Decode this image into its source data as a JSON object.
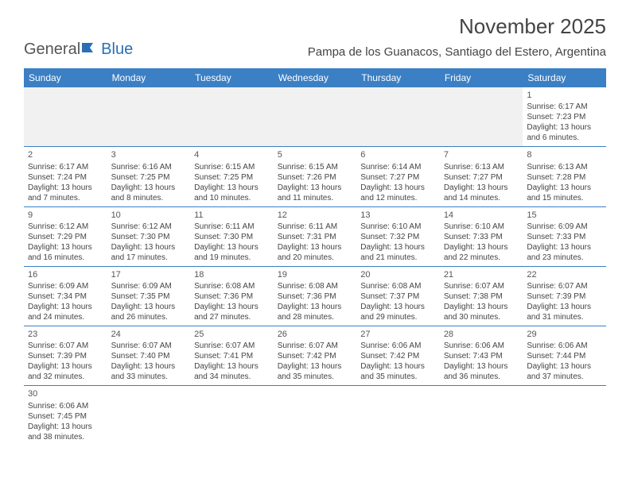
{
  "logo": {
    "part1": "General",
    "part2": "Blue"
  },
  "title": "November 2025",
  "location": "Pampa de los Guanacos, Santiago del Estero, Argentina",
  "colors": {
    "header_bg": "#3b7fc4",
    "header_text": "#ffffff",
    "cell_border": "#3b7fc4",
    "empty_bg": "#f1f1f1",
    "text": "#444444",
    "logo_gray": "#555555",
    "logo_blue": "#2a6fb5"
  },
  "weekdays": [
    "Sunday",
    "Monday",
    "Tuesday",
    "Wednesday",
    "Thursday",
    "Friday",
    "Saturday"
  ],
  "weeks": [
    [
      null,
      null,
      null,
      null,
      null,
      null,
      {
        "n": "1",
        "sr": "Sunrise: 6:17 AM",
        "ss": "Sunset: 7:23 PM",
        "dl1": "Daylight: 13 hours",
        "dl2": "and 6 minutes."
      }
    ],
    [
      {
        "n": "2",
        "sr": "Sunrise: 6:17 AM",
        "ss": "Sunset: 7:24 PM",
        "dl1": "Daylight: 13 hours",
        "dl2": "and 7 minutes."
      },
      {
        "n": "3",
        "sr": "Sunrise: 6:16 AM",
        "ss": "Sunset: 7:25 PM",
        "dl1": "Daylight: 13 hours",
        "dl2": "and 8 minutes."
      },
      {
        "n": "4",
        "sr": "Sunrise: 6:15 AM",
        "ss": "Sunset: 7:25 PM",
        "dl1": "Daylight: 13 hours",
        "dl2": "and 10 minutes."
      },
      {
        "n": "5",
        "sr": "Sunrise: 6:15 AM",
        "ss": "Sunset: 7:26 PM",
        "dl1": "Daylight: 13 hours",
        "dl2": "and 11 minutes."
      },
      {
        "n": "6",
        "sr": "Sunrise: 6:14 AM",
        "ss": "Sunset: 7:27 PM",
        "dl1": "Daylight: 13 hours",
        "dl2": "and 12 minutes."
      },
      {
        "n": "7",
        "sr": "Sunrise: 6:13 AM",
        "ss": "Sunset: 7:27 PM",
        "dl1": "Daylight: 13 hours",
        "dl2": "and 14 minutes."
      },
      {
        "n": "8",
        "sr": "Sunrise: 6:13 AM",
        "ss": "Sunset: 7:28 PM",
        "dl1": "Daylight: 13 hours",
        "dl2": "and 15 minutes."
      }
    ],
    [
      {
        "n": "9",
        "sr": "Sunrise: 6:12 AM",
        "ss": "Sunset: 7:29 PM",
        "dl1": "Daylight: 13 hours",
        "dl2": "and 16 minutes."
      },
      {
        "n": "10",
        "sr": "Sunrise: 6:12 AM",
        "ss": "Sunset: 7:30 PM",
        "dl1": "Daylight: 13 hours",
        "dl2": "and 17 minutes."
      },
      {
        "n": "11",
        "sr": "Sunrise: 6:11 AM",
        "ss": "Sunset: 7:30 PM",
        "dl1": "Daylight: 13 hours",
        "dl2": "and 19 minutes."
      },
      {
        "n": "12",
        "sr": "Sunrise: 6:11 AM",
        "ss": "Sunset: 7:31 PM",
        "dl1": "Daylight: 13 hours",
        "dl2": "and 20 minutes."
      },
      {
        "n": "13",
        "sr": "Sunrise: 6:10 AM",
        "ss": "Sunset: 7:32 PM",
        "dl1": "Daylight: 13 hours",
        "dl2": "and 21 minutes."
      },
      {
        "n": "14",
        "sr": "Sunrise: 6:10 AM",
        "ss": "Sunset: 7:33 PM",
        "dl1": "Daylight: 13 hours",
        "dl2": "and 22 minutes."
      },
      {
        "n": "15",
        "sr": "Sunrise: 6:09 AM",
        "ss": "Sunset: 7:33 PM",
        "dl1": "Daylight: 13 hours",
        "dl2": "and 23 minutes."
      }
    ],
    [
      {
        "n": "16",
        "sr": "Sunrise: 6:09 AM",
        "ss": "Sunset: 7:34 PM",
        "dl1": "Daylight: 13 hours",
        "dl2": "and 24 minutes."
      },
      {
        "n": "17",
        "sr": "Sunrise: 6:09 AM",
        "ss": "Sunset: 7:35 PM",
        "dl1": "Daylight: 13 hours",
        "dl2": "and 26 minutes."
      },
      {
        "n": "18",
        "sr": "Sunrise: 6:08 AM",
        "ss": "Sunset: 7:36 PM",
        "dl1": "Daylight: 13 hours",
        "dl2": "and 27 minutes."
      },
      {
        "n": "19",
        "sr": "Sunrise: 6:08 AM",
        "ss": "Sunset: 7:36 PM",
        "dl1": "Daylight: 13 hours",
        "dl2": "and 28 minutes."
      },
      {
        "n": "20",
        "sr": "Sunrise: 6:08 AM",
        "ss": "Sunset: 7:37 PM",
        "dl1": "Daylight: 13 hours",
        "dl2": "and 29 minutes."
      },
      {
        "n": "21",
        "sr": "Sunrise: 6:07 AM",
        "ss": "Sunset: 7:38 PM",
        "dl1": "Daylight: 13 hours",
        "dl2": "and 30 minutes."
      },
      {
        "n": "22",
        "sr": "Sunrise: 6:07 AM",
        "ss": "Sunset: 7:39 PM",
        "dl1": "Daylight: 13 hours",
        "dl2": "and 31 minutes."
      }
    ],
    [
      {
        "n": "23",
        "sr": "Sunrise: 6:07 AM",
        "ss": "Sunset: 7:39 PM",
        "dl1": "Daylight: 13 hours",
        "dl2": "and 32 minutes."
      },
      {
        "n": "24",
        "sr": "Sunrise: 6:07 AM",
        "ss": "Sunset: 7:40 PM",
        "dl1": "Daylight: 13 hours",
        "dl2": "and 33 minutes."
      },
      {
        "n": "25",
        "sr": "Sunrise: 6:07 AM",
        "ss": "Sunset: 7:41 PM",
        "dl1": "Daylight: 13 hours",
        "dl2": "and 34 minutes."
      },
      {
        "n": "26",
        "sr": "Sunrise: 6:07 AM",
        "ss": "Sunset: 7:42 PM",
        "dl1": "Daylight: 13 hours",
        "dl2": "and 35 minutes."
      },
      {
        "n": "27",
        "sr": "Sunrise: 6:06 AM",
        "ss": "Sunset: 7:42 PM",
        "dl1": "Daylight: 13 hours",
        "dl2": "and 35 minutes."
      },
      {
        "n": "28",
        "sr": "Sunrise: 6:06 AM",
        "ss": "Sunset: 7:43 PM",
        "dl1": "Daylight: 13 hours",
        "dl2": "and 36 minutes."
      },
      {
        "n": "29",
        "sr": "Sunrise: 6:06 AM",
        "ss": "Sunset: 7:44 PM",
        "dl1": "Daylight: 13 hours",
        "dl2": "and 37 minutes."
      }
    ],
    [
      {
        "n": "30",
        "sr": "Sunrise: 6:06 AM",
        "ss": "Sunset: 7:45 PM",
        "dl1": "Daylight: 13 hours",
        "dl2": "and 38 minutes."
      },
      null,
      null,
      null,
      null,
      null,
      null
    ]
  ]
}
